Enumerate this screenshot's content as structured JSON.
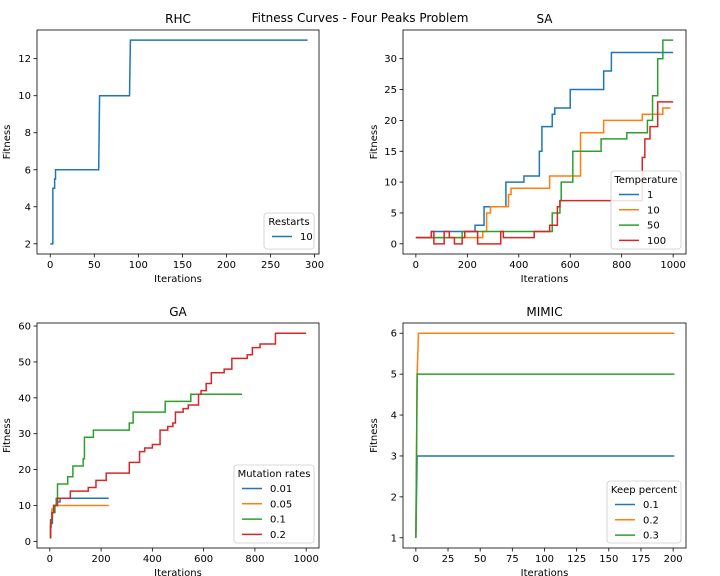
{
  "suptitle": "Fitness Curves - Four Peaks Problem",
  "chart_data": [
    {
      "type": "line",
      "title": "RHC",
      "xlabel": "Iterations",
      "ylabel": "Fitness",
      "xlim": [
        -15,
        305
      ],
      "ylim": [
        1.45,
        13.55
      ],
      "xticks": [
        0,
        50,
        100,
        150,
        200,
        250,
        300
      ],
      "yticks": [
        2,
        4,
        6,
        8,
        10,
        12
      ],
      "legend": {
        "title": "Restarts",
        "position": "lower right"
      },
      "series": [
        {
          "name": "10",
          "color": "#1f77b4",
          "points": [
            [
              0,
              2
            ],
            [
              3,
              2
            ],
            [
              3,
              5
            ],
            [
              5,
              5
            ],
            [
              5,
              5.5
            ],
            [
              6,
              5.5
            ],
            [
              6,
              6
            ],
            [
              55,
              6
            ],
            [
              56,
              10
            ],
            [
              90,
              10
            ],
            [
              91,
              13
            ],
            [
              292,
              13
            ]
          ]
        }
      ]
    },
    {
      "type": "line",
      "title": "SA",
      "xlabel": "Iterations",
      "ylabel": "Fitness",
      "xlim": [
        -50,
        1050
      ],
      "ylim": [
        -1.65,
        34.65
      ],
      "xticks": [
        0,
        200,
        400,
        600,
        800,
        1000
      ],
      "yticks": [
        0,
        5,
        10,
        15,
        20,
        25,
        30
      ],
      "legend": {
        "title": "Temperature",
        "position": "lower right"
      },
      "series": [
        {
          "name": "1",
          "color": "#1f77b4",
          "points": [
            [
              0,
              1
            ],
            [
              60,
              1
            ],
            [
              60,
              2
            ],
            [
              230,
              2
            ],
            [
              230,
              3
            ],
            [
              265,
              3
            ],
            [
              265,
              6
            ],
            [
              350,
              6
            ],
            [
              350,
              10
            ],
            [
              420,
              10
            ],
            [
              420,
              11
            ],
            [
              480,
              11
            ],
            [
              480,
              15
            ],
            [
              490,
              15
            ],
            [
              490,
              19
            ],
            [
              530,
              19
            ],
            [
              530,
              21
            ],
            [
              540,
              21
            ],
            [
              540,
              22
            ],
            [
              600,
              22
            ],
            [
              600,
              25
            ],
            [
              730,
              25
            ],
            [
              730,
              28
            ],
            [
              760,
              28
            ],
            [
              760,
              31
            ],
            [
              1000,
              31
            ]
          ]
        },
        {
          "name": "10",
          "color": "#ff7f0e",
          "points": [
            [
              0,
              1
            ],
            [
              260,
              1
            ],
            [
              260,
              2
            ],
            [
              275,
              2
            ],
            [
              275,
              5
            ],
            [
              290,
              5
            ],
            [
              290,
              6
            ],
            [
              360,
              6
            ],
            [
              360,
              8
            ],
            [
              370,
              8
            ],
            [
              370,
              9
            ],
            [
              520,
              9
            ],
            [
              520,
              11
            ],
            [
              640,
              11
            ],
            [
              640,
              18
            ],
            [
              730,
              18
            ],
            [
              730,
              20
            ],
            [
              880,
              20
            ],
            [
              880,
              21
            ],
            [
              960,
              21
            ],
            [
              960,
              22
            ],
            [
              990,
              22
            ]
          ]
        },
        {
          "name": "50",
          "color": "#2ca02c",
          "points": [
            [
              0,
              1
            ],
            [
              180,
              1
            ],
            [
              180,
              2
            ],
            [
              530,
              2
            ],
            [
              530,
              5
            ],
            [
              560,
              5
            ],
            [
              560,
              7
            ],
            [
              565,
              7
            ],
            [
              565,
              10
            ],
            [
              610,
              10
            ],
            [
              610,
              15
            ],
            [
              720,
              15
            ],
            [
              720,
              17
            ],
            [
              820,
              17
            ],
            [
              820,
              18
            ],
            [
              900,
              18
            ],
            [
              900,
              20
            ],
            [
              920,
              20
            ],
            [
              920,
              24
            ],
            [
              940,
              24
            ],
            [
              940,
              30
            ],
            [
              960,
              30
            ],
            [
              960,
              33
            ],
            [
              1000,
              33
            ]
          ]
        },
        {
          "name": "100",
          "color": "#d62728",
          "points": [
            [
              0,
              1
            ],
            [
              60,
              1
            ],
            [
              60,
              2
            ],
            [
              70,
              2
            ],
            [
              70,
              0
            ],
            [
              110,
              0
            ],
            [
              110,
              2
            ],
            [
              130,
              2
            ],
            [
              130,
              1
            ],
            [
              150,
              1
            ],
            [
              150,
              0
            ],
            [
              180,
              0
            ],
            [
              180,
              1
            ],
            [
              190,
              1
            ],
            [
              190,
              2
            ],
            [
              240,
              2
            ],
            [
              240,
              0
            ],
            [
              330,
              0
            ],
            [
              330,
              2
            ],
            [
              340,
              2
            ],
            [
              340,
              1
            ],
            [
              460,
              1
            ],
            [
              460,
              2
            ],
            [
              520,
              2
            ],
            [
              520,
              3
            ],
            [
              550,
              3
            ],
            [
              550,
              6
            ],
            [
              560,
              6
            ],
            [
              560,
              7
            ],
            [
              880,
              7
            ],
            [
              880,
              14
            ],
            [
              890,
              14
            ],
            [
              890,
              17
            ],
            [
              910,
              17
            ],
            [
              910,
              19
            ],
            [
              940,
              19
            ],
            [
              940,
              23
            ],
            [
              1000,
              23
            ]
          ]
        }
      ]
    },
    {
      "type": "line",
      "title": "GA",
      "xlabel": "Iterations",
      "ylabel": "Fitness",
      "xlim": [
        -50,
        1050
      ],
      "ylim": [
        -1.85,
        60.85
      ],
      "xticks": [
        0,
        200,
        400,
        600,
        800,
        1000
      ],
      "yticks": [
        0,
        10,
        20,
        30,
        40,
        50,
        60
      ],
      "legend": {
        "title": "Mutation rates",
        "position": "lower right"
      },
      "series": [
        {
          "name": "0.01",
          "color": "#1f77b4",
          "points": [
            [
              0,
              1
            ],
            [
              3,
              1
            ],
            [
              3,
              5
            ],
            [
              10,
              5
            ],
            [
              10,
              8
            ],
            [
              15,
              8
            ],
            [
              15,
              10
            ],
            [
              25,
              10
            ],
            [
              25,
              11
            ],
            [
              40,
              11
            ],
            [
              40,
              12
            ],
            [
              230,
              12
            ]
          ]
        },
        {
          "name": "0.05",
          "color": "#ff7f0e",
          "points": [
            [
              0,
              1
            ],
            [
              3,
              1
            ],
            [
              3,
              6
            ],
            [
              8,
              6
            ],
            [
              8,
              9
            ],
            [
              15,
              9
            ],
            [
              15,
              10
            ],
            [
              230,
              10
            ]
          ]
        },
        {
          "name": "0.1",
          "color": "#2ca02c",
          "points": [
            [
              0,
              1
            ],
            [
              3,
              1
            ],
            [
              3,
              6
            ],
            [
              10,
              6
            ],
            [
              10,
              8
            ],
            [
              20,
              8
            ],
            [
              20,
              10
            ],
            [
              25,
              10
            ],
            [
              25,
              12
            ],
            [
              30,
              12
            ],
            [
              30,
              16
            ],
            [
              70,
              16
            ],
            [
              70,
              18
            ],
            [
              90,
              18
            ],
            [
              90,
              21
            ],
            [
              130,
              21
            ],
            [
              130,
              23
            ],
            [
              135,
              23
            ],
            [
              135,
              29
            ],
            [
              170,
              29
            ],
            [
              170,
              31
            ],
            [
              310,
              31
            ],
            [
              310,
              33
            ],
            [
              325,
              33
            ],
            [
              325,
              36
            ],
            [
              450,
              36
            ],
            [
              450,
              39
            ],
            [
              550,
              39
            ],
            [
              550,
              41
            ],
            [
              750,
              41
            ]
          ]
        },
        {
          "name": "0.2",
          "color": "#d62728",
          "points": [
            [
              0,
              1
            ],
            [
              3,
              1
            ],
            [
              3,
              4
            ],
            [
              5,
              4
            ],
            [
              5,
              6
            ],
            [
              8,
              6
            ],
            [
              8,
              8
            ],
            [
              15,
              8
            ],
            [
              15,
              10
            ],
            [
              30,
              10
            ],
            [
              30,
              12
            ],
            [
              80,
              12
            ],
            [
              80,
              14
            ],
            [
              150,
              14
            ],
            [
              150,
              15
            ],
            [
              180,
              15
            ],
            [
              180,
              17
            ],
            [
              220,
              17
            ],
            [
              220,
              19
            ],
            [
              310,
              19
            ],
            [
              310,
              22
            ],
            [
              350,
              22
            ],
            [
              350,
              25
            ],
            [
              370,
              25
            ],
            [
              370,
              26
            ],
            [
              400,
              26
            ],
            [
              400,
              27
            ],
            [
              430,
              27
            ],
            [
              430,
              31
            ],
            [
              460,
              31
            ],
            [
              460,
              32
            ],
            [
              480,
              32
            ],
            [
              480,
              33
            ],
            [
              490,
              33
            ],
            [
              490,
              36
            ],
            [
              520,
              36
            ],
            [
              520,
              37
            ],
            [
              540,
              37
            ],
            [
              540,
              38
            ],
            [
              580,
              38
            ],
            [
              580,
              41
            ],
            [
              590,
              41
            ],
            [
              590,
              42
            ],
            [
              610,
              42
            ],
            [
              610,
              44
            ],
            [
              630,
              44
            ],
            [
              630,
              47
            ],
            [
              680,
              47
            ],
            [
              680,
              48
            ],
            [
              710,
              48
            ],
            [
              710,
              51
            ],
            [
              770,
              51
            ],
            [
              770,
              52
            ],
            [
              790,
              52
            ],
            [
              790,
              54
            ],
            [
              820,
              54
            ],
            [
              820,
              55
            ],
            [
              880,
              55
            ],
            [
              880,
              58
            ],
            [
              1000,
              58
            ]
          ]
        }
      ]
    },
    {
      "type": "line",
      "title": "MIMIC",
      "xlabel": "Iterations",
      "ylabel": "Fitness",
      "xlim": [
        -10,
        210
      ],
      "ylim": [
        0.75,
        6.25
      ],
      "xticks": [
        0,
        25,
        50,
        75,
        100,
        125,
        150,
        175,
        200
      ],
      "yticks": [
        1,
        2,
        3,
        4,
        5,
        6
      ],
      "legend": {
        "title": "Keep percent",
        "position": "lower right"
      },
      "series": [
        {
          "name": "0.1",
          "color": "#1f77b4",
          "points": [
            [
              0,
              1
            ],
            [
              1,
              3
            ],
            [
              201,
              3
            ]
          ]
        },
        {
          "name": "0.2",
          "color": "#ff7f0e",
          "points": [
            [
              0,
              1
            ],
            [
              1,
              5
            ],
            [
              2,
              6
            ],
            [
              201,
              6
            ]
          ]
        },
        {
          "name": "0.3",
          "color": "#2ca02c",
          "points": [
            [
              0,
              1
            ],
            [
              1,
              5
            ],
            [
              201,
              5
            ]
          ]
        }
      ]
    }
  ]
}
